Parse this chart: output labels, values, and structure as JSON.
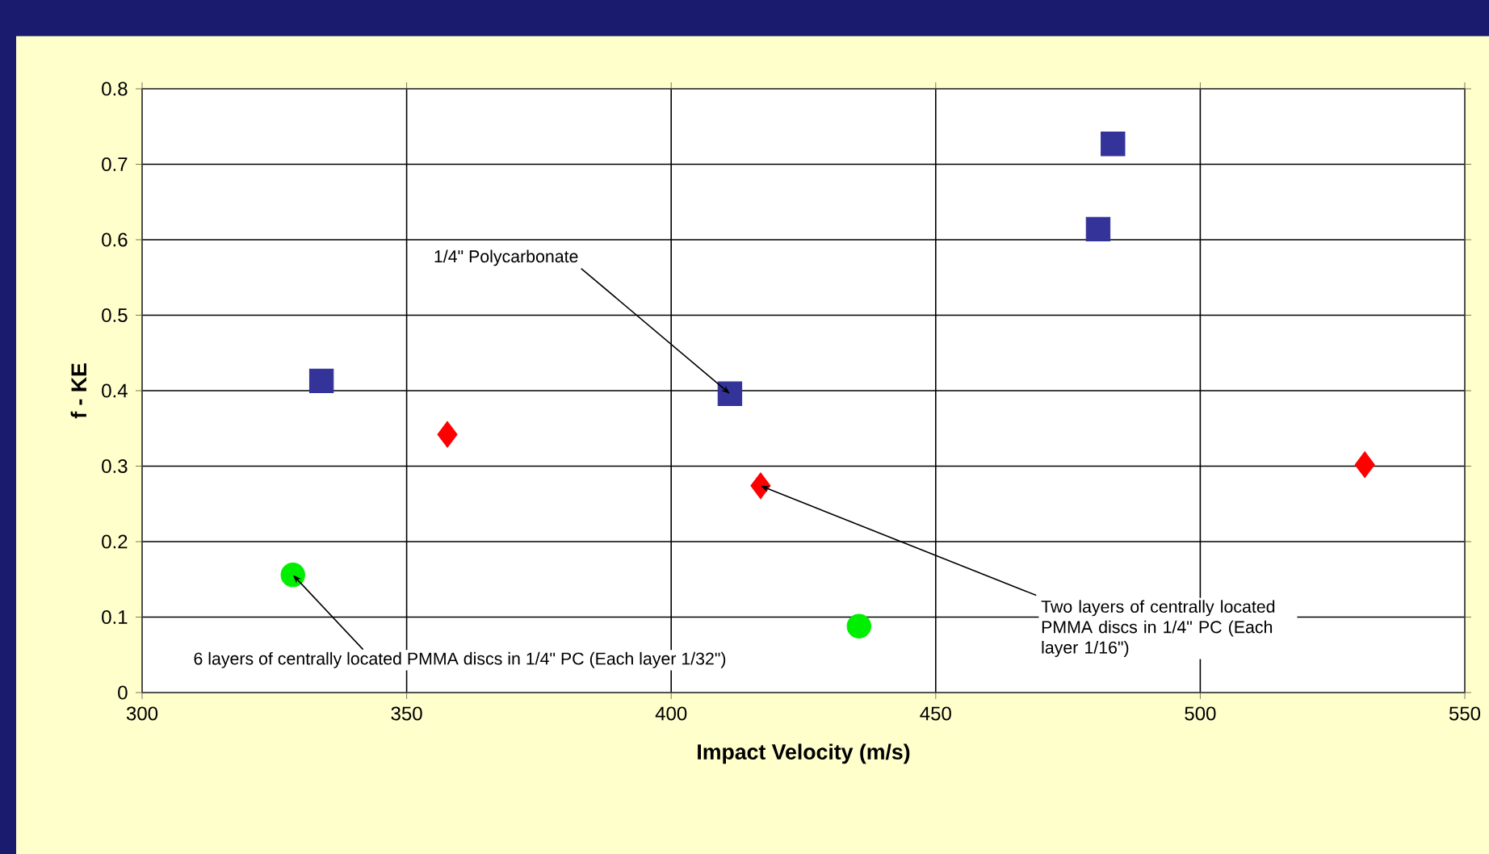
{
  "chart_data": {
    "type": "scatter",
    "xlabel": "Impact Velocity (m/s)",
    "ylabel": "f - KE",
    "xlim": [
      300,
      550
    ],
    "ylim": [
      0,
      0.8
    ],
    "xticks": [
      300,
      350,
      400,
      450,
      500,
      550
    ],
    "yticks": [
      0,
      0.1,
      0.2,
      0.3,
      0.4,
      0.5,
      0.6,
      0.7,
      0.8
    ],
    "grid": true,
    "series": [
      {
        "color": "#333399",
        "marker": "square",
        "x": [
          333.9,
          411.1,
          480.7,
          483.5
        ],
        "values": [
          0.413,
          0.396,
          0.614,
          0.727
        ]
      },
      {
        "color": "#ff0000",
        "marker": "diamond",
        "x": [
          357.7,
          416.9,
          531.1
        ],
        "values": [
          0.342,
          0.274,
          0.302
        ]
      },
      {
        "color": "#00ee00",
        "marker": "circle",
        "x": [
          328.5,
          435.5
        ],
        "values": [
          0.156,
          0.088
        ]
      }
    ],
    "annotations": [
      {
        "text": "1/4\" Polycarbonate",
        "x": 411.1,
        "y": 0.396
      },
      {
        "text": "Two layers of centrally located PMMA discs in 1/4\" PC (Each layer 1/16\")",
        "x": 416.9,
        "y": 0.274
      },
      {
        "text": "6 layers of centrally located PMMA discs in 1/4\" PC (Each layer 1/32\")",
        "x": 328.5,
        "y": 0.156
      }
    ]
  }
}
